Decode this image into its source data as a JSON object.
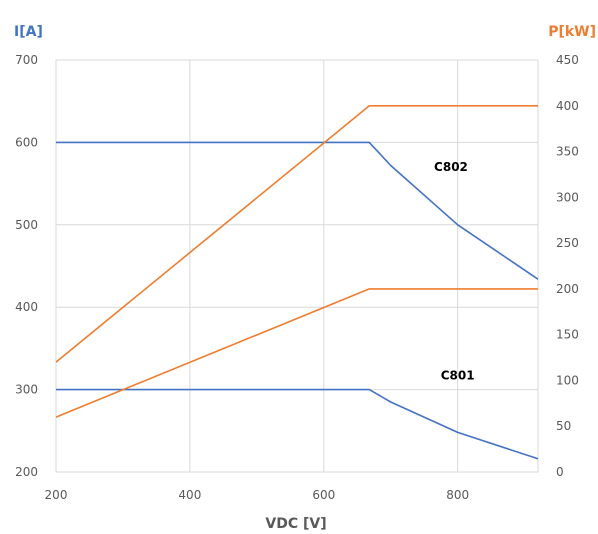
{
  "chart_data": {
    "type": "line",
    "title": "",
    "xlabel": "VDC [V]",
    "ylabel_left": "I[A]",
    "ylabel_right": "P[kW]",
    "xlim": [
      200,
      920
    ],
    "ylim_left": [
      200,
      700
    ],
    "ylim_right": [
      0,
      450
    ],
    "x_ticks": [
      "200",
      "400",
      "600",
      "800"
    ],
    "y_left_ticks": [
      "200",
      "300",
      "400",
      "500",
      "600",
      "700"
    ],
    "y_right_ticks": [
      "0",
      "50",
      "100",
      "150",
      "200",
      "250",
      "300",
      "350",
      "400",
      "450"
    ],
    "grid": true,
    "colors": {
      "current": "#4472C4",
      "power": "#ED7D31"
    },
    "series": [
      {
        "axis": "left",
        "kind": "current",
        "x": [
          200,
          668,
          700,
          800,
          920
        ],
        "values": [
          300,
          300,
          285,
          248,
          216
        ]
      },
      {
        "axis": "left",
        "kind": "current",
        "x": [
          200,
          668,
          700,
          800,
          920
        ],
        "values": [
          600,
          600,
          572,
          500,
          434
        ]
      },
      {
        "axis": "right",
        "kind": "power",
        "x": [
          200,
          668,
          920
        ],
        "values": [
          60,
          200,
          200
        ]
      },
      {
        "axis": "right",
        "kind": "power",
        "x": [
          200,
          668,
          920
        ],
        "values": [
          120,
          400,
          400
        ]
      }
    ],
    "annotations": [
      {
        "text": "C802",
        "x": 790,
        "y": 565
      },
      {
        "text": "C801",
        "x": 800,
        "y": 312
      }
    ]
  }
}
